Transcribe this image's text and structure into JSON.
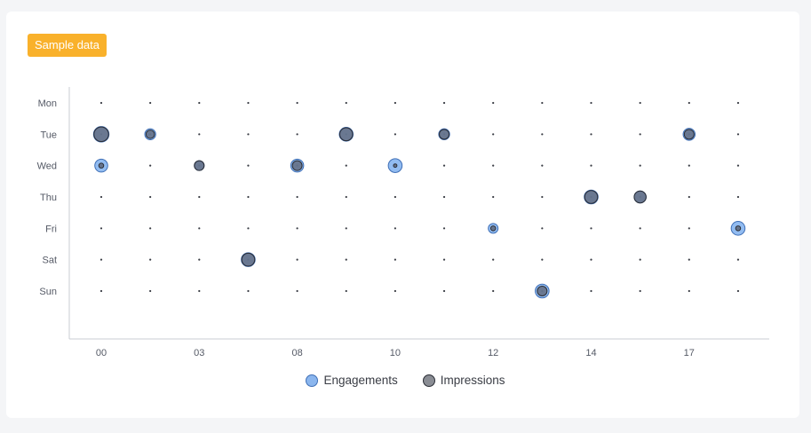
{
  "badge": {
    "label": "Sample data"
  },
  "chart_data": {
    "type": "scatter",
    "title": "",
    "xlabel": "",
    "ylabel": "",
    "days": [
      "Mon",
      "Tue",
      "Wed",
      "Thu",
      "Fri",
      "Sat",
      "Sun"
    ],
    "hours": [
      0,
      1,
      2,
      3,
      4,
      5,
      6,
      7,
      8,
      9,
      10,
      11,
      12,
      13
    ],
    "x_tick_labels": [
      {
        "hour": 0,
        "label": "00"
      },
      {
        "hour": 2,
        "label": "03"
      },
      {
        "hour": 4,
        "label": "08"
      },
      {
        "hour": 6,
        "label": "10"
      },
      {
        "hour": 8,
        "label": "12"
      },
      {
        "hour": 10,
        "label": "14"
      },
      {
        "hour": 12,
        "label": "17"
      }
    ],
    "grid": false,
    "legend_position": "bottom",
    "series": [
      {
        "name": "Engagements",
        "color": "#7fb0ee",
        "points": [
          {
            "day": "Tue",
            "hour": 0,
            "value": 10
          },
          {
            "day": "Tue",
            "hour": 1,
            "value": 5
          },
          {
            "day": "Tue",
            "hour": 5,
            "value": 8
          },
          {
            "day": "Tue",
            "hour": 7,
            "value": 5
          },
          {
            "day": "Tue",
            "hour": 12,
            "value": 6
          },
          {
            "day": "Wed",
            "hour": 0,
            "value": 7
          },
          {
            "day": "Wed",
            "hour": 2,
            "value": 4
          },
          {
            "day": "Wed",
            "hour": 4,
            "value": 7
          },
          {
            "day": "Wed",
            "hour": 6,
            "value": 8
          },
          {
            "day": "Thu",
            "hour": 10,
            "value": 8
          },
          {
            "day": "Thu",
            "hour": 11,
            "value": 6
          },
          {
            "day": "Fri",
            "hour": 8,
            "value": 4
          },
          {
            "day": "Fri",
            "hour": 13,
            "value": 8
          },
          {
            "day": "Sat",
            "hour": 3,
            "value": 8
          },
          {
            "day": "Sun",
            "hour": 9,
            "value": 8
          }
        ]
      },
      {
        "name": "Impressions",
        "color": "#3a3d45",
        "points": [
          {
            "day": "Tue",
            "hour": 0,
            "value": 9
          },
          {
            "day": "Tue",
            "hour": 1,
            "value": 3
          },
          {
            "day": "Tue",
            "hour": 5,
            "value": 7
          },
          {
            "day": "Tue",
            "hour": 7,
            "value": 4
          },
          {
            "day": "Tue",
            "hour": 12,
            "value": 4
          },
          {
            "day": "Wed",
            "hour": 0,
            "value": 1
          },
          {
            "day": "Wed",
            "hour": 2,
            "value": 4
          },
          {
            "day": "Wed",
            "hour": 4,
            "value": 4
          },
          {
            "day": "Wed",
            "hour": 6,
            "value": 0.5
          },
          {
            "day": "Thu",
            "hour": 10,
            "value": 7
          },
          {
            "day": "Thu",
            "hour": 11,
            "value": 6
          },
          {
            "day": "Fri",
            "hour": 8,
            "value": 1
          },
          {
            "day": "Fri",
            "hour": 13,
            "value": 1
          },
          {
            "day": "Sat",
            "hour": 3,
            "value": 7
          },
          {
            "day": "Sun",
            "hour": 9,
            "value": 4
          }
        ]
      }
    ]
  }
}
